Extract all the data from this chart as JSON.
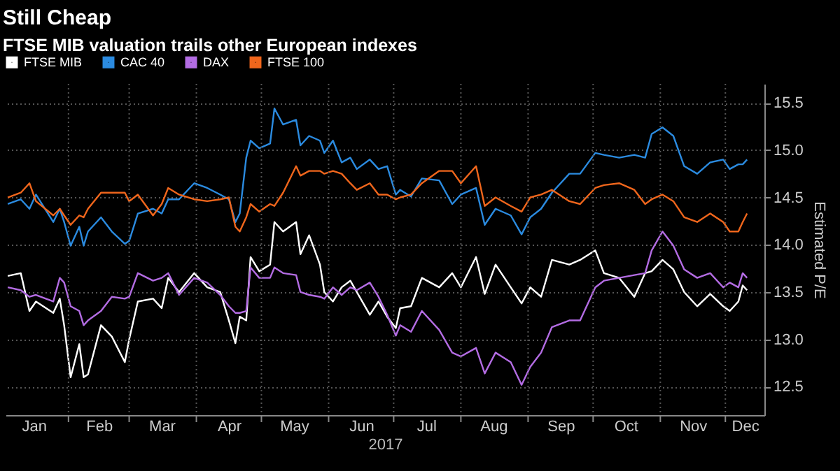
{
  "chart_data": {
    "type": "line",
    "title": "Still Cheap",
    "subtitle": "FTSE MIB valuation trails other European indexes",
    "xlabel": "2017",
    "ylabel": "Estimated P/E",
    "x": [
      "2017-01-04",
      "2017-01-10",
      "2017-01-14",
      "2017-01-17",
      "2017-01-25",
      "2017-01-28",
      "2017-01-30",
      "2017-02-02",
      "2017-02-06",
      "2017-02-08",
      "2017-02-10",
      "2017-02-16",
      "2017-02-21",
      "2017-02-27",
      "2017-03-01",
      "2017-03-05",
      "2017-03-12",
      "2017-03-16",
      "2017-03-19",
      "2017-03-24",
      "2017-03-31",
      "2017-04-06",
      "2017-04-12",
      "2017-04-16",
      "2017-04-19",
      "2017-04-21",
      "2017-04-24",
      "2017-04-26",
      "2017-04-30",
      "2017-05-05",
      "2017-05-07",
      "2017-05-11",
      "2017-05-17",
      "2017-05-19",
      "2017-05-23",
      "2017-05-28",
      "2017-05-30",
      "2017-06-03",
      "2017-06-07",
      "2017-06-11",
      "2017-06-14",
      "2017-06-20",
      "2017-06-24",
      "2017-06-28",
      "2017-07-02",
      "2017-07-04",
      "2017-07-09",
      "2017-07-14",
      "2017-07-22",
      "2017-07-28",
      "2017-08-01",
      "2017-08-08",
      "2017-08-12",
      "2017-08-17",
      "2017-08-24",
      "2017-08-29",
      "2017-09-02",
      "2017-09-07",
      "2017-09-12",
      "2017-09-20",
      "2017-09-25",
      "2017-10-02",
      "2017-10-06",
      "2017-10-13",
      "2017-10-20",
      "2017-10-25",
      "2017-10-28",
      "2017-11-02",
      "2017-11-07",
      "2017-11-12",
      "2017-11-18",
      "2017-11-24",
      "2017-11-30",
      "2017-12-03",
      "2017-12-07",
      "2017-12-09",
      "2017-12-11"
    ],
    "series": [
      {
        "name": "FTSE MIB",
        "color": "#ffffff",
        "values": [
          13.67,
          13.7,
          13.3,
          13.4,
          13.28,
          13.43,
          13.15,
          12.6,
          12.95,
          12.6,
          12.63,
          13.15,
          13.03,
          12.76,
          13.0,
          13.4,
          13.43,
          13.33,
          13.65,
          13.5,
          13.7,
          13.55,
          13.5,
          13.2,
          12.96,
          13.24,
          13.2,
          13.87,
          13.72,
          13.79,
          14.24,
          14.14,
          14.24,
          13.9,
          14.1,
          13.79,
          13.5,
          13.4,
          13.55,
          13.62,
          13.5,
          13.26,
          13.4,
          13.24,
          13.12,
          13.33,
          13.35,
          13.65,
          13.55,
          13.7,
          13.55,
          13.87,
          13.48,
          13.79,
          13.55,
          13.38,
          13.55,
          13.45,
          13.84,
          13.79,
          13.84,
          13.94,
          13.7,
          13.65,
          13.45,
          13.7,
          13.72,
          13.84,
          13.74,
          13.5,
          13.35,
          13.48,
          13.35,
          13.3,
          13.4,
          13.57,
          13.52
        ]
      },
      {
        "name": "CAC 40",
        "color": "#2b8be0",
        "values": [
          14.43,
          14.48,
          14.38,
          14.53,
          14.24,
          14.38,
          14.24,
          13.99,
          14.19,
          13.99,
          14.14,
          14.29,
          14.14,
          14.01,
          14.04,
          14.33,
          14.38,
          14.33,
          14.48,
          14.48,
          14.65,
          14.6,
          14.53,
          14.48,
          14.24,
          14.33,
          14.92,
          15.1,
          15.02,
          15.07,
          15.44,
          15.27,
          15.32,
          15.05,
          15.15,
          15.1,
          14.97,
          15.1,
          14.87,
          14.92,
          14.8,
          14.9,
          14.8,
          14.83,
          14.53,
          14.58,
          14.51,
          14.7,
          14.68,
          14.43,
          14.53,
          14.6,
          14.21,
          14.38,
          14.31,
          14.11,
          14.29,
          14.38,
          14.55,
          14.75,
          14.75,
          14.97,
          14.95,
          14.92,
          14.95,
          14.92,
          15.17,
          15.24,
          15.15,
          14.83,
          14.75,
          14.87,
          14.9,
          14.8,
          14.85,
          14.85,
          14.9
        ]
      },
      {
        "name": "DAX",
        "color": "#b36ce3",
        "values": [
          13.55,
          13.52,
          13.45,
          13.47,
          13.4,
          13.65,
          13.6,
          13.35,
          13.3,
          13.15,
          13.2,
          13.3,
          13.45,
          13.43,
          13.45,
          13.7,
          13.62,
          13.65,
          13.7,
          13.47,
          13.65,
          13.6,
          13.47,
          13.35,
          13.28,
          13.28,
          13.3,
          13.76,
          13.65,
          13.65,
          13.76,
          13.7,
          13.68,
          13.5,
          13.47,
          13.45,
          13.43,
          13.55,
          13.47,
          13.55,
          13.52,
          13.6,
          13.45,
          13.26,
          13.04,
          13.15,
          13.08,
          13.3,
          13.1,
          12.86,
          12.82,
          12.91,
          12.64,
          12.86,
          12.76,
          12.52,
          12.71,
          12.86,
          13.13,
          13.2,
          13.2,
          13.55,
          13.62,
          13.65,
          13.68,
          13.7,
          13.94,
          14.14,
          13.99,
          13.74,
          13.65,
          13.7,
          13.55,
          13.6,
          13.55,
          13.7,
          13.65
        ]
      },
      {
        "name": "FTSE 100",
        "color": "#f0661c",
        "values": [
          14.5,
          14.55,
          14.65,
          14.46,
          14.31,
          14.38,
          14.31,
          14.21,
          14.31,
          14.29,
          14.38,
          14.55,
          14.55,
          14.55,
          14.46,
          14.53,
          14.31,
          14.43,
          14.6,
          14.53,
          14.48,
          14.46,
          14.48,
          14.5,
          14.19,
          14.14,
          14.29,
          14.43,
          14.35,
          14.43,
          14.41,
          14.55,
          14.83,
          14.73,
          14.78,
          14.78,
          14.75,
          14.78,
          14.75,
          14.65,
          14.58,
          14.65,
          14.53,
          14.53,
          14.48,
          14.5,
          14.53,
          14.65,
          14.78,
          14.78,
          14.65,
          14.83,
          14.41,
          14.5,
          14.41,
          14.35,
          14.5,
          14.53,
          14.58,
          14.46,
          14.43,
          14.6,
          14.63,
          14.65,
          14.58,
          14.43,
          14.48,
          14.53,
          14.46,
          14.29,
          14.24,
          14.33,
          14.24,
          14.14,
          14.14,
          14.24,
          14.33
        ]
      }
    ],
    "xlim": [
      "2017-01-03",
      "2017-12-19"
    ],
    "xticks": [
      {
        "value": "2017-01-16",
        "label": "Jan"
      },
      {
        "value": "2017-02-01",
        "label": null
      },
      {
        "value": "2017-02-15",
        "label": "Feb"
      },
      {
        "value": "2017-03-01",
        "label": null
      },
      {
        "value": "2017-03-16",
        "label": "Mar"
      },
      {
        "value": "2017-04-01",
        "label": null
      },
      {
        "value": "2017-04-16",
        "label": "Apr"
      },
      {
        "value": "2017-05-01",
        "label": null
      },
      {
        "value": "2017-05-16",
        "label": "May"
      },
      {
        "value": "2017-06-01",
        "label": null
      },
      {
        "value": "2017-06-16",
        "label": "Jun"
      },
      {
        "value": "2017-07-01",
        "label": null
      },
      {
        "value": "2017-07-16",
        "label": "Jul"
      },
      {
        "value": "2017-08-01",
        "label": null
      },
      {
        "value": "2017-08-16",
        "label": "Aug"
      },
      {
        "value": "2017-09-01",
        "label": null
      },
      {
        "value": "2017-09-16",
        "label": "Sep"
      },
      {
        "value": "2017-10-01",
        "label": null
      },
      {
        "value": "2017-10-16",
        "label": "Oct"
      },
      {
        "value": "2017-11-01",
        "label": null
      },
      {
        "value": "2017-11-16",
        "label": "Nov"
      },
      {
        "value": "2017-12-01",
        "label": null
      },
      {
        "value": "2017-12-10",
        "label": "Dec"
      }
    ],
    "ylim": [
      12.2,
      15.7
    ],
    "yticks": [
      12.5,
      {
        "value": 13,
        "label": "13.0"
      },
      13.5,
      {
        "value": 14,
        "label": "14.0"
      },
      14.5,
      {
        "value": 15,
        "label": "15.0"
      },
      15.5
    ],
    "grid": true,
    "legend": "top left",
    "marker": "none",
    "line_style": "solid"
  }
}
